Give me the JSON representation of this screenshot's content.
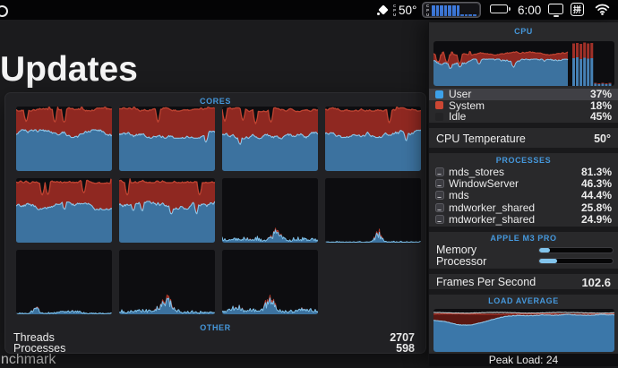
{
  "menu_bar": {
    "temp_sensor_label": "CPU",
    "temp_value": "50°",
    "cpu_widget_label": "CPU",
    "cpu_widget_bars": [
      0.88,
      0.92,
      0.86,
      0.9,
      0.87,
      0.91,
      0.85,
      0.06,
      0.05,
      0.06,
      0.05
    ],
    "battery_level": 0.55,
    "time": "6:00",
    "input_source_glyph": "拼"
  },
  "desktop": {
    "heading": "Updates",
    "partial_text": "nchmark"
  },
  "cores_window": {
    "title": "CORES",
    "other_title": "OTHER",
    "stats": [
      {
        "label": "Threads",
        "value": "2707"
      },
      {
        "label": "Processes",
        "value": "598"
      }
    ]
  },
  "panel": {
    "cpu_title": "CPU",
    "legend": [
      {
        "label": "User",
        "value": "37%",
        "color": "#3da0e8",
        "highlighted": true
      },
      {
        "label": "System",
        "value": "18%",
        "color": "#cc4733",
        "highlighted": false
      },
      {
        "label": "Idle",
        "value": "45%",
        "color": "#232325",
        "highlighted": false
      }
    ],
    "temperature": {
      "label": "CPU Temperature",
      "value": "50°"
    },
    "processes_title": "PROCESSES",
    "processes": [
      {
        "name": "mds_stores",
        "value": "81.3%"
      },
      {
        "name": "WindowServer",
        "value": "46.3%"
      },
      {
        "name": "mds",
        "value": "44.4%"
      },
      {
        "name": "mdworker_shared",
        "value": "25.8%"
      },
      {
        "name": "mdworker_shared",
        "value": "24.9%"
      }
    ],
    "chip_title": "APPLE M3 PRO",
    "gauges": [
      {
        "label": "Memory",
        "fill": 0.15
      },
      {
        "label": "Processor",
        "fill": 0.24
      }
    ],
    "fps": {
      "label": "Frames Per Second",
      "value": "102.6"
    },
    "load_title": "LOAD AVERAGE",
    "peak_load": "Peak Load: 24",
    "colors": {
      "accent_blue": "#4598dc",
      "graph_blue_fill": "#3c729f",
      "graph_blue_line": "#8ec6e8",
      "graph_red_fill": "#8f2821",
      "graph_red_line": "#c04432",
      "bar_blue": "#4681b5",
      "bar_red": "#a03028"
    }
  },
  "chart_data": {
    "cpu_history": {
      "type": "area",
      "stacked": true,
      "user_pct": 54,
      "total_pct": 72,
      "core_bars": [
        [
          62,
          95
        ],
        [
          64,
          96
        ],
        [
          60,
          94
        ],
        [
          63,
          97
        ],
        [
          61,
          95
        ],
        [
          62,
          96
        ],
        [
          5,
          7
        ],
        [
          4,
          6
        ],
        [
          5,
          7
        ],
        [
          4,
          6
        ],
        [
          5,
          7
        ]
      ]
    },
    "cores": {
      "type": "area",
      "items": [
        {
          "core": 1,
          "style": "heavy",
          "user": 58,
          "total": 96
        },
        {
          "core": 2,
          "style": "heavy",
          "user": 57,
          "total": 96
        },
        {
          "core": 3,
          "style": "heavy",
          "user": 56,
          "total": 95
        },
        {
          "core": 4,
          "style": "heavy",
          "user": 58,
          "total": 96
        },
        {
          "core": 5,
          "style": "heavy",
          "user": 57,
          "total": 95
        },
        {
          "core": 6,
          "style": "heavy",
          "user": 58,
          "total": 96
        },
        {
          "core": 7,
          "style": "low",
          "base": 2.5,
          "noise": 6,
          "red": 0.5,
          "clusters": [
            [
              0.2,
              0.12,
              4
            ],
            [
              0.56,
              0.05,
              18
            ],
            [
              0.82,
              0.08,
              5
            ]
          ]
        },
        {
          "core": 8,
          "style": "low",
          "base": 1,
          "noise": 1.5,
          "red": 0.6,
          "clusters": [
            [
              0.55,
              0.035,
              16
            ]
          ]
        },
        {
          "core": 9,
          "style": "low",
          "base": 1.2,
          "noise": 2.5,
          "red": 0.35,
          "clusters": [
            [
              0.2,
              0.03,
              12
            ],
            [
              0.55,
              0.1,
              5
            ]
          ]
        },
        {
          "core": 10,
          "style": "low",
          "base": 3,
          "noise": 5,
          "red": 0.5,
          "clusters": [
            [
              0.3,
              0.15,
              4
            ],
            [
              0.5,
              0.05,
              22
            ]
          ]
        },
        {
          "core": 11,
          "style": "low",
          "base": 4,
          "noise": 6,
          "red": 0.5,
          "clusters": [
            [
              0.15,
              0.1,
              5
            ],
            [
              0.5,
              0.05,
              24
            ],
            [
              0.85,
              0.08,
              5
            ]
          ]
        }
      ]
    },
    "load_average": {
      "type": "area",
      "values_pct": [
        74,
        70,
        63,
        62,
        68,
        76,
        83,
        85,
        84,
        86,
        85,
        87,
        86,
        85,
        87,
        86
      ],
      "red_line_pct": 88,
      "white_line_pct": 91
    }
  }
}
